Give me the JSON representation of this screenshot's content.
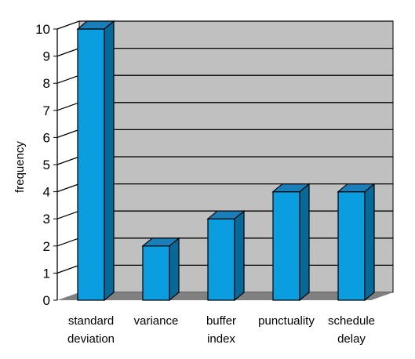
{
  "chart_data": {
    "type": "bar",
    "categories": [
      [
        "standard",
        "deviation"
      ],
      [
        "variance"
      ],
      [
        "buffer",
        "index"
      ],
      [
        "punctuality"
      ],
      [
        "schedule",
        "delay"
      ]
    ],
    "values": [
      10,
      2,
      3,
      4,
      4
    ],
    "ylabel": "frequency",
    "xlabel": "",
    "ylim": [
      0,
      10
    ],
    "yticks": [
      0,
      1,
      2,
      3,
      4,
      5,
      6,
      7,
      8,
      9,
      10
    ],
    "grid": true,
    "style": "3d",
    "colors": {
      "bar_front": "#0a9ee0",
      "bar_side": "#056a9a",
      "bar_top": "#1a7fb8",
      "plot_wall": "#c0c0c0",
      "plot_floor": "#808080",
      "grid": "#000000"
    }
  }
}
